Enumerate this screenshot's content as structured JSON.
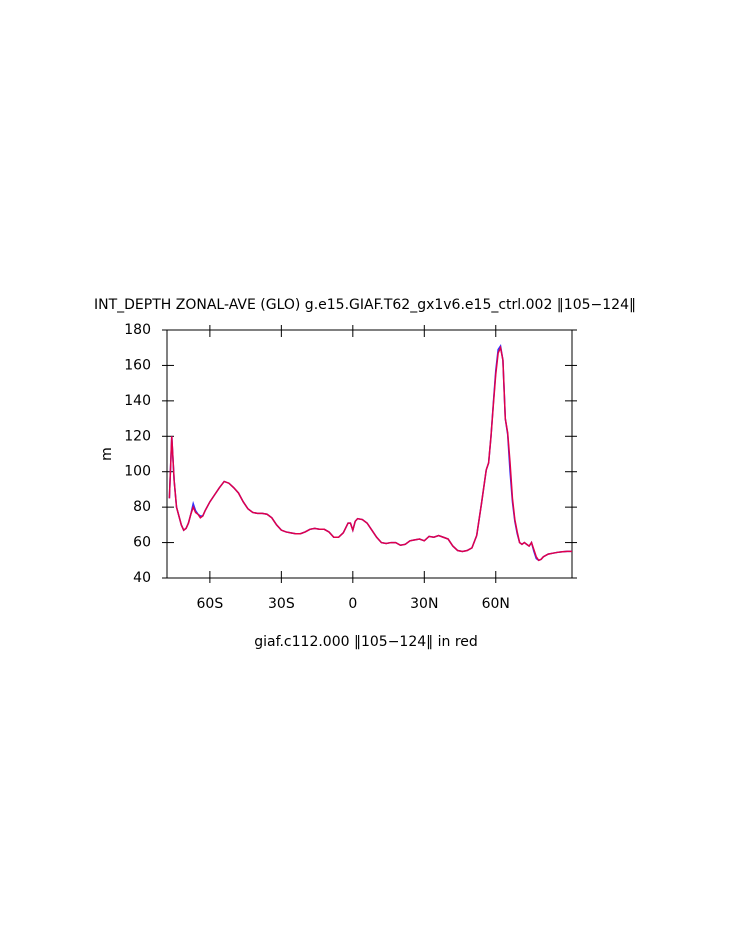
{
  "chart_data": {
    "type": "line",
    "title": "INT_DEPTH ZONAL-AVE (GLO) g.e15.GIAF.T62_gx1v6.e15_ctrl.002 ‖105−124‖",
    "ylabel": "m",
    "xlabel": "giaf.c112.000 ‖105−124‖ in red",
    "x": [
      -77,
      -76,
      -75,
      -74,
      -72,
      -71,
      -70,
      -69,
      -68,
      -67,
      -66,
      -65,
      -64,
      -63,
      -62,
      -60,
      -58,
      -56,
      -54,
      -52,
      -50,
      -48,
      -46,
      -44,
      -42,
      -40,
      -38,
      -36,
      -34,
      -32,
      -30,
      -28,
      -26,
      -24,
      -22,
      -20,
      -18,
      -16,
      -14,
      -12,
      -10,
      -8,
      -6,
      -4,
      -2,
      -1,
      0,
      1,
      2,
      4,
      6,
      8,
      10,
      12,
      14,
      16,
      18,
      20,
      22,
      24,
      26,
      28,
      30,
      32,
      34,
      36,
      38,
      40,
      42,
      44,
      46,
      48,
      50,
      52,
      54,
      56,
      57,
      58,
      59,
      60,
      61,
      62,
      63,
      64,
      65,
      66,
      67,
      68,
      69,
      70,
      71,
      72,
      73,
      74,
      75,
      76,
      77,
      78,
      79,
      80,
      82,
      84,
      86,
      88,
      90,
      92
    ],
    "series": [
      {
        "color": "#3030ff",
        "values": [
          85,
          120,
          95,
          80,
          70,
          67,
          68,
          71,
          76,
          82,
          78,
          76,
          75,
          75,
          78,
          83,
          87,
          91,
          94.5,
          93.5,
          91,
          88,
          83,
          79,
          77,
          76.5,
          76.5,
          76,
          74,
          70,
          67,
          66,
          65.5,
          65,
          65,
          66,
          67.5,
          68,
          67.5,
          67.5,
          66,
          63,
          63,
          65.5,
          71,
          71,
          67,
          72,
          73.5,
          73,
          71,
          67,
          63,
          60,
          59.5,
          60,
          60,
          58.5,
          59,
          61,
          61.5,
          62,
          61,
          63.5,
          63,
          64,
          63,
          62,
          58,
          55.5,
          55,
          55.5,
          57,
          64,
          82,
          101,
          105,
          120,
          139,
          157,
          169,
          171,
          163,
          130,
          121,
          100,
          83,
          72,
          65,
          60,
          59,
          60,
          59,
          58,
          60,
          55,
          51,
          50,
          50.5,
          52,
          53.5,
          54,
          54.5,
          54.8,
          55,
          55
        ]
      },
      {
        "color": "#e0004a",
        "values": [
          85,
          120,
          95,
          80,
          70,
          67,
          68,
          71,
          76,
          80,
          77,
          76,
          74,
          75,
          78,
          83,
          87,
          91,
          94.5,
          93.5,
          91,
          88,
          83,
          79,
          77,
          76.5,
          76.5,
          76,
          74,
          70,
          67,
          66,
          65.5,
          65,
          65,
          66,
          67.5,
          68,
          67.5,
          67.5,
          66,
          63,
          63,
          65.5,
          71,
          71,
          67,
          72,
          73.5,
          73,
          71,
          67,
          63,
          60,
          59.5,
          60,
          60,
          58.5,
          59,
          61,
          61.5,
          62,
          61,
          63.5,
          63,
          64,
          63,
          62,
          58,
          55.5,
          55,
          55.5,
          57,
          64,
          82,
          101,
          105,
          120,
          138,
          155,
          167,
          170,
          163,
          130,
          122,
          105,
          85,
          73,
          66,
          60,
          59,
          60,
          59,
          58,
          60,
          56,
          52,
          50,
          50.5,
          52,
          53.5,
          54,
          54.5,
          54.8,
          55,
          55
        ]
      }
    ],
    "xlim": [
      -78,
      92
    ],
    "xticks": [
      {
        "value": -60,
        "label": "60S"
      },
      {
        "value": -30,
        "label": "30S"
      },
      0,
      {
        "value": 30,
        "label": "30N"
      },
      {
        "value": 60,
        "label": "60N"
      }
    ],
    "ylim": [
      40,
      180
    ],
    "yticks": [
      40,
      60,
      80,
      100,
      120,
      140,
      160,
      180
    ]
  }
}
